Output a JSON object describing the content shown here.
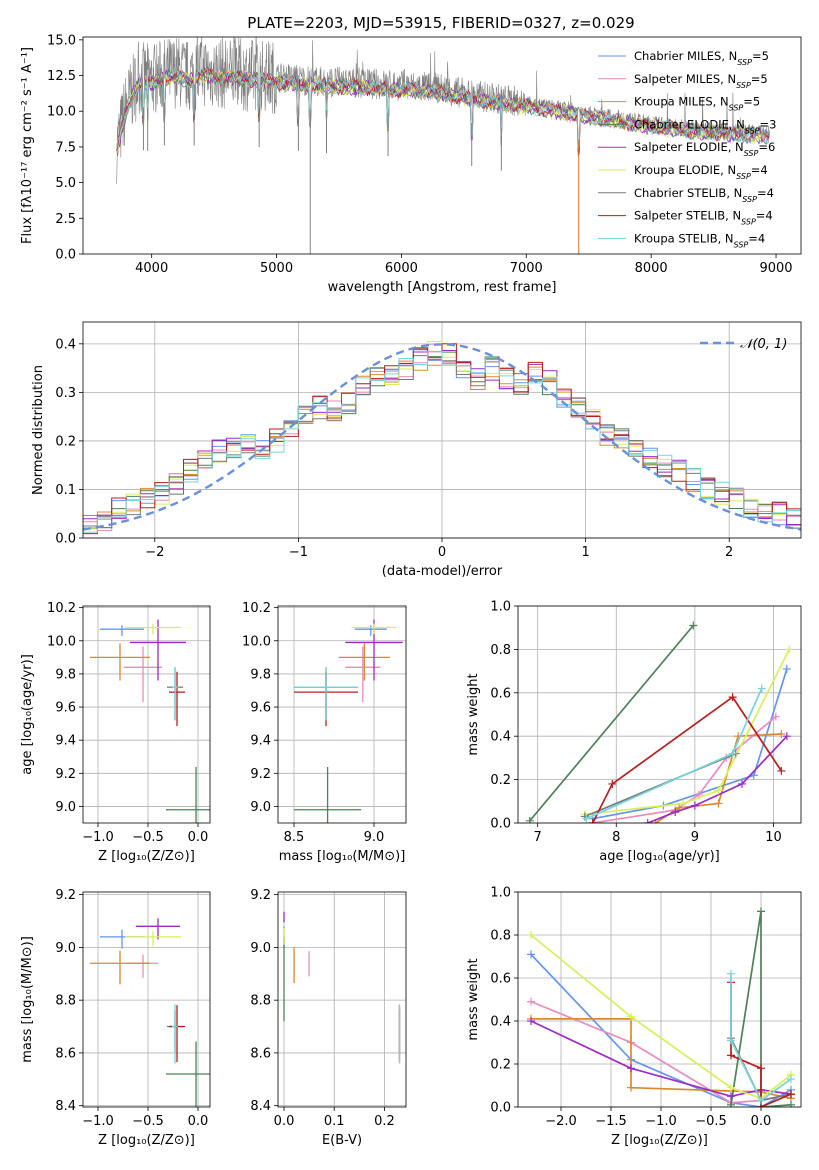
{
  "colors": {
    "series": [
      "#6495ED",
      "#E88BBD",
      "#D98B2B",
      "#4E8059",
      "#9C2BC4",
      "#D9EE5A",
      "#7A7A7A",
      "#B81E1E",
      "#76D5DA"
    ],
    "spectrum_observed": "#808080",
    "gaussian": "#6a8fdc",
    "grid": "#b0b0b0"
  },
  "panels": {
    "spectrum": {
      "title": "PLATE=2203, MJD=53915, FIBERID=0327, z=0.029",
      "xlabel": "wavelength [Angstrom, rest frame]",
      "ylabel": "Flux [fλ10⁻¹⁷ erg cm⁻² s⁻¹ A⁻¹]",
      "xticks": [
        "4000",
        "5000",
        "6000",
        "7000",
        "8000",
        "9000"
      ],
      "yticks": [
        "0.0",
        "2.5",
        "5.0",
        "7.5",
        "10.0",
        "12.5",
        "15.0"
      ]
    },
    "residuals": {
      "xlabel": "(data-model)/error",
      "ylabel": "Normed distribution",
      "xticks": [
        "−2",
        "−1",
        "0",
        "1",
        "2"
      ],
      "yticks": [
        "0.0",
        "0.1",
        "0.2",
        "0.3",
        "0.4"
      ],
      "legend": "𝒩(0, 1)"
    },
    "z_age": {
      "xlabel": "Z [log₁₀(Z/Z⊙)]",
      "ylabel": "age  [log₁₀(age/yr)]",
      "xticks": [
        "−1.0",
        "−0.5",
        "0.0"
      ],
      "yticks": [
        "9.0",
        "9.2",
        "9.4",
        "9.6",
        "9.8",
        "10.0",
        "10.2"
      ]
    },
    "mass_age": {
      "xlabel": "mass [log₁₀(M/M⊙)]",
      "xticks": [
        "8.5",
        "9.0"
      ],
      "yticks": [
        "9.0",
        "9.2",
        "9.4",
        "9.6",
        "9.8",
        "10.0",
        "10.2"
      ]
    },
    "age_weight": {
      "xlabel": "age  [log₁₀(age/yr)]",
      "ylabel": "mass weight",
      "xticks": [
        "7",
        "8",
        "9",
        "10"
      ],
      "yticks": [
        "0.0",
        "0.2",
        "0.4",
        "0.6",
        "0.8",
        "1.0"
      ]
    },
    "z_mass": {
      "xlabel": "Z [log₁₀(Z/Z⊙)]",
      "ylabel": "mass [log₁₀(M/M⊙)]",
      "xticks": [
        "−1.0",
        "−0.5",
        "0.0"
      ],
      "yticks": [
        "8.4",
        "8.6",
        "8.8",
        "9.0",
        "9.2"
      ]
    },
    "ebv_mass": {
      "xlabel": "E(B-V)",
      "xticks": [
        "0.0",
        "0.1",
        "0.2"
      ],
      "yticks": [
        "8.4",
        "8.6",
        "8.8",
        "9.0",
        "9.2"
      ]
    },
    "z_weight": {
      "xlabel": "Z [log₁₀(Z/Z⊙)]",
      "ylabel": "mass weight",
      "xticks": [
        "−2.0",
        "−1.5",
        "−1.0",
        "−0.5",
        "0.0"
      ],
      "yticks": [
        "0.0",
        "0.2",
        "0.4",
        "0.6",
        "0.8",
        "1.0"
      ]
    }
  },
  "chart_data": [
    {
      "type": "line",
      "title": "PLATE=2203, MJD=53915, FIBERID=0327, z=0.029",
      "xlabel": "wavelength [Angstrom, rest frame]",
      "ylabel": "Flux [fλ10⁻¹⁷ erg cm⁻² s⁻¹ A⁻¹]",
      "xlim": [
        3450,
        9200
      ],
      "ylim": [
        0,
        15.2
      ],
      "legend_position": "top-right",
      "series": [
        {
          "name": "Chabrier MILES, N_SSP=5"
        },
        {
          "name": "Salpeter MILES, N_SSP=5"
        },
        {
          "name": "Kroupa MILES, N_SSP=5"
        },
        {
          "name": "Chabrier ELODIE, N_SSP=3"
        },
        {
          "name": "Salpeter ELODIE, N_SSP=6"
        },
        {
          "name": "Kroupa ELODIE, N_SSP=4"
        },
        {
          "name": "Chabrier STELIB, N_SSP=4"
        },
        {
          "name": "Salpeter STELIB, N_SSP=4"
        },
        {
          "name": "Kroupa STELIB, N_SSP=4"
        }
      ],
      "legend": [
        {
          "label": "Chabrier MILES, N",
          "sub": "SSP",
          "suffix": "=5"
        },
        {
          "label": "Salpeter MILES, N",
          "sub": "SSP",
          "suffix": "=5"
        },
        {
          "label": "Kroupa MILES, N",
          "sub": "SSP",
          "suffix": "=5"
        },
        {
          "label": "Chabrier ELODIE, N",
          "sub": "SSP",
          "suffix": "=3"
        },
        {
          "label": "Salpeter ELODIE, N",
          "sub": "SSP",
          "suffix": "=6"
        },
        {
          "label": "Kroupa ELODIE, N",
          "sub": "SSP",
          "suffix": "=4"
        },
        {
          "label": "Chabrier STELIB, N",
          "sub": "SSP",
          "suffix": "=4"
        },
        {
          "label": "Salpeter STELIB, N",
          "sub": "SSP",
          "suffix": "=4"
        },
        {
          "label": "Kroupa STELIB, N",
          "sub": "SSP",
          "suffix": "=4"
        }
      ],
      "envelope_x": [
        3720,
        3800,
        3900,
        4000,
        4100,
        4200,
        4300,
        4400,
        4500,
        4700,
        5000,
        5300,
        5600,
        6000,
        6300,
        6600,
        7000,
        7300,
        7500,
        7800,
        8000,
        8300,
        8600,
        8800,
        8950
      ],
      "envelope_y": [
        7.5,
        10.5,
        12.3,
        12.2,
        12.6,
        12.8,
        12.4,
        12.9,
        12.7,
        12.6,
        12.4,
        12.1,
        12.0,
        11.8,
        11.6,
        11.1,
        10.6,
        10.2,
        9.9,
        9.5,
        9.2,
        8.9,
        8.7,
        8.6,
        8.5
      ],
      "absorption_lines": [
        3934,
        3968,
        4102,
        4340,
        4861,
        5175,
        5270,
        5400,
        5893,
        6563,
        6800,
        7420
      ]
    },
    {
      "type": "bar",
      "xlabel": "(data-model)/error",
      "ylabel": "Normed distribution",
      "xlim": [
        -2.5,
        2.5
      ],
      "ylim": [
        0,
        0.445
      ],
      "bin_width": 0.1,
      "legend_position": "top-right",
      "gaussian": {
        "name": "𝒩(0, 1)",
        "mean": 0,
        "sigma": 1
      },
      "bin_centers": [
        -2.45,
        -2.35,
        -2.25,
        -2.15,
        -2.05,
        -1.95,
        -1.85,
        -1.75,
        -1.65,
        -1.55,
        -1.45,
        -1.35,
        -1.25,
        -1.15,
        -1.05,
        -0.95,
        -0.85,
        -0.75,
        -0.65,
        -0.55,
        -0.45,
        -0.35,
        -0.25,
        -0.15,
        -0.05,
        0.05,
        0.15,
        0.25,
        0.35,
        0.45,
        0.55,
        0.65,
        0.75,
        0.85,
        0.95,
        1.05,
        1.15,
        1.25,
        1.35,
        1.45,
        1.55,
        1.65,
        1.75,
        1.85,
        1.95,
        2.05,
        2.15,
        2.25,
        2.35,
        2.45
      ],
      "base_values": [
        0.03,
        0.04,
        0.06,
        0.07,
        0.08,
        0.09,
        0.11,
        0.14,
        0.16,
        0.18,
        0.19,
        0.19,
        0.18,
        0.2,
        0.23,
        0.25,
        0.27,
        0.26,
        0.28,
        0.31,
        0.33,
        0.34,
        0.35,
        0.37,
        0.38,
        0.38,
        0.34,
        0.33,
        0.35,
        0.33,
        0.32,
        0.34,
        0.32,
        0.29,
        0.27,
        0.24,
        0.21,
        0.2,
        0.19,
        0.16,
        0.15,
        0.14,
        0.12,
        0.1,
        0.09,
        0.08,
        0.06,
        0.05,
        0.05,
        0.04
      ]
    },
    {
      "type": "scatter",
      "xlabel": "Z [log₁₀(Z/Z⊙)]",
      "ylabel": "age  [log₁₀(age/yr)]",
      "xlim": [
        -1.15,
        0.12
      ],
      "ylim": [
        8.9,
        10.21
      ],
      "points": [
        {
          "x": -0.76,
          "y": 10.07,
          "xerr": 0.22,
          "yerr": 0.08
        },
        {
          "x": -0.55,
          "y": 9.84,
          "xerr": 0.19,
          "yerr": 0.42
        },
        {
          "x": -0.78,
          "y": 9.9,
          "xerr": 0.3,
          "yerr": 0.28
        },
        {
          "x": -0.02,
          "y": 8.98,
          "xerr": 0.3,
          "yerr": 0.86
        },
        {
          "x": -0.4,
          "y": 9.99,
          "xerr": 0.28,
          "yerr": 0.46
        },
        {
          "x": -0.45,
          "y": 10.08,
          "xerr": 0.28,
          "yerr": 0.08
        },
        {
          "x": -0.23,
          "y": 9.72,
          "xerr": 0.08,
          "yerr": 0.4
        },
        {
          "x": -0.21,
          "y": 9.69,
          "xerr": 0.08,
          "yerr": 0.41
        },
        {
          "x": -0.23,
          "y": 9.72,
          "xerr": 0.03,
          "yerr": 0.4
        }
      ]
    },
    {
      "type": "scatter",
      "xlabel": "mass [log₁₀(M/M⊙)]",
      "xlim": [
        8.4,
        9.2
      ],
      "ylim": [
        8.9,
        10.21
      ],
      "points": [
        {
          "x": 8.98,
          "y": 10.07,
          "xerr": 0.1,
          "yerr": 0.08
        },
        {
          "x": 8.93,
          "y": 9.84,
          "xerr": 0.11,
          "yerr": 0.42
        },
        {
          "x": 8.94,
          "y": 9.9,
          "xerr": 0.16,
          "yerr": 0.28
        },
        {
          "x": 8.71,
          "y": 8.98,
          "xerr": 0.21,
          "yerr": 0.86
        },
        {
          "x": 9.0,
          "y": 9.99,
          "xerr": 0.18,
          "yerr": 0.46
        },
        {
          "x": 9.0,
          "y": 10.08,
          "xerr": 0.14,
          "yerr": 0.08
        },
        {
          "x": 8.7,
          "y": 9.72,
          "xerr": 0.2,
          "yerr": 0.4
        },
        {
          "x": 8.7,
          "y": 9.69,
          "xerr": 0.2,
          "yerr": 0.41
        },
        {
          "x": 8.7,
          "y": 9.72,
          "xerr": 0.2,
          "yerr": 0.4
        }
      ]
    },
    {
      "type": "line",
      "xlabel": "age  [log₁₀(age/yr)]",
      "ylabel": "mass weight",
      "xlim": [
        6.75,
        10.35
      ],
      "ylim": [
        0,
        1
      ],
      "series": [
        {
          "x": [
            7.7,
            8.6,
            9.75,
            10.17
          ],
          "y": [
            0.02,
            0.08,
            0.22,
            0.71
          ]
        },
        {
          "x": [
            7.7,
            8.75,
            9.05,
            9.4,
            10.03
          ],
          "y": [
            0.0,
            0.06,
            0.13,
            0.3,
            0.49
          ]
        },
        {
          "x": [
            8.5,
            8.8,
            9.3,
            9.55,
            10.1
          ],
          "y": [
            0.0,
            0.07,
            0.09,
            0.4,
            0.41
          ]
        },
        {
          "x": [
            6.9,
            8.98
          ],
          "y": [
            0.01,
            0.91
          ]
        },
        {
          "x": [
            8.4,
            8.75,
            9.0,
            9.6,
            10.17
          ],
          "y": [
            0.0,
            0.05,
            0.08,
            0.18,
            0.4
          ]
        },
        {
          "x": [
            7.6,
            8.85,
            9.3,
            10.2
          ],
          "y": [
            0.04,
            0.09,
            0.15,
            0.8
          ]
        },
        {
          "x": [
            7.6,
            9.52
          ],
          "y": [
            0.03,
            0.32
          ]
        },
        {
          "x": [
            7.7,
            7.95,
            9.48,
            10.1
          ],
          "y": [
            0.0,
            0.18,
            0.58,
            0.24
          ]
        },
        {
          "x": [
            7.62,
            9.48,
            9.85
          ],
          "y": [
            0.02,
            0.32,
            0.62
          ]
        }
      ]
    },
    {
      "type": "scatter",
      "xlabel": "Z [log₁₀(Z/Z⊙)]",
      "ylabel": "mass [log₁₀(M/M⊙)]",
      "xlim": [
        -1.15,
        0.12
      ],
      "ylim": [
        8.395,
        9.21
      ],
      "points": [
        {
          "x": -0.76,
          "y": 9.04,
          "xerr": 0.22,
          "yerr": 0.09
        },
        {
          "x": -0.55,
          "y": 8.94,
          "xerr": 0.15,
          "yerr": 0.11
        },
        {
          "x": -0.78,
          "y": 8.94,
          "xerr": 0.3,
          "yerr": 0.16
        },
        {
          "x": -0.02,
          "y": 8.52,
          "xerr": 0.3,
          "yerr": 0.41
        },
        {
          "x": -0.4,
          "y": 9.08,
          "xerr": 0.22,
          "yerr": 0.1
        },
        {
          "x": -0.45,
          "y": 9.04,
          "xerr": 0.28,
          "yerr": 0.07
        },
        {
          "x": -0.23,
          "y": 8.7,
          "xerr": 0.08,
          "yerr": 0.2
        },
        {
          "x": -0.21,
          "y": 8.7,
          "xerr": 0.08,
          "yerr": 0.27
        },
        {
          "x": -0.23,
          "y": 8.7,
          "xerr": 0.03,
          "yerr": 0.28
        }
      ]
    },
    {
      "type": "scatter",
      "xlabel": "E(B-V)",
      "xlim": [
        -0.012,
        0.243
      ],
      "ylim": [
        8.395,
        9.21
      ],
      "points": [
        {
          "x": 0.0,
          "y": 9.05,
          "yerr": 0.1
        },
        {
          "x": 0.05,
          "y": 8.95,
          "yerr": 0.12
        },
        {
          "x": 0.02,
          "y": 8.95,
          "yerr": 0.17
        },
        {
          "x": 0.0,
          "y": 8.92,
          "yerr": 0.4
        },
        {
          "x": 0.0,
          "y": 9.12,
          "yerr": 0.05
        },
        {
          "x": 0.0,
          "y": 9.05,
          "yerr": 0.08
        },
        {
          "x": 0.23,
          "y": 8.7,
          "yerr": 0.2
        },
        {
          "x": 0.23,
          "y": 8.7,
          "yerr": 0.27
        },
        {
          "x": 0.23,
          "y": 8.7,
          "yerr": 0.28
        }
      ]
    },
    {
      "type": "line",
      "xlabel": "Z [log₁₀(Z/Z⊙)]",
      "ylabel": "mass weight",
      "xlim": [
        -2.43,
        0.4
      ],
      "ylim": [
        0,
        1
      ],
      "series": [
        {
          "x": [
            -2.3,
            -1.3,
            -0.3,
            0.0,
            0.3
          ],
          "y": [
            0.71,
            0.22,
            0.02,
            0.0,
            0.08
          ]
        },
        {
          "x": [
            -2.3,
            -1.3,
            -0.3,
            0.0,
            0.3
          ],
          "y": [
            0.49,
            0.3,
            0.02,
            0.03,
            0.06
          ]
        },
        {
          "x": [
            -2.3,
            -1.3,
            -1.3,
            0.0,
            0.3
          ],
          "y": [
            0.41,
            0.41,
            0.09,
            0.07,
            0.04
          ]
        },
        {
          "x": [
            -0.3,
            0.0,
            0.0,
            0.3
          ],
          "y": [
            0.01,
            0.91,
            0.0,
            0.01
          ]
        },
        {
          "x": [
            -2.3,
            -1.3,
            -0.3,
            0.0,
            0.3
          ],
          "y": [
            0.4,
            0.18,
            0.05,
            0.08,
            0.06
          ]
        },
        {
          "x": [
            -2.3,
            -1.3,
            -0.3,
            0.0,
            0.3
          ],
          "y": [
            0.8,
            0.42,
            0.09,
            0.04,
            0.15
          ]
        },
        {
          "x": [
            -0.3,
            0.0,
            0.3
          ],
          "y": [
            0.32,
            0.03,
            0.06
          ]
        },
        {
          "x": [
            -0.3,
            -0.3,
            0.0,
            0.0,
            0.3
          ],
          "y": [
            0.58,
            0.24,
            0.18,
            0.0,
            0.06
          ]
        },
        {
          "x": [
            -0.3,
            -0.3,
            0.0,
            0.3
          ],
          "y": [
            0.62,
            0.31,
            0.03,
            0.13
          ]
        }
      ]
    }
  ]
}
